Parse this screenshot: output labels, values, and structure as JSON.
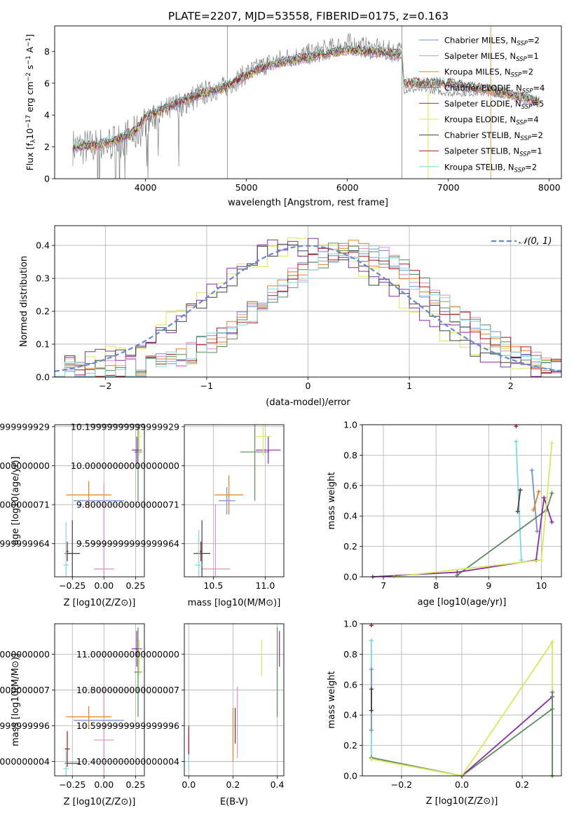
{
  "figure_title": "PLATE=2207, MJD=53558, FIBERID=0175, z=0.163",
  "series_colors": [
    "#6f8fd8",
    "#e08fbf",
    "#e8801e",
    "#5a8a5a",
    "#8a2aa8",
    "#d8e85a",
    "#404040",
    "#a01818",
    "#7adada"
  ],
  "chart_data": [
    {
      "type": "line",
      "title": "PLATE=2207, MJD=53558, FIBERID=0175, z=0.163",
      "xlabel": "wavelength [Angstrom, rest frame]",
      "ylabel": "Flux [f_λ 10^-17 erg cm^-2 s^-1 A^-1]",
      "xlim": [
        3100,
        8120
      ],
      "ylim": [
        0,
        9.6
      ],
      "xticks": [
        4000,
        5000,
        6000,
        7000,
        8000
      ],
      "yticks": [
        0,
        2,
        4,
        6,
        8
      ],
      "grid": false,
      "legend_position": "top-right",
      "legend": [
        {
          "base": "Chabrier MILES, N",
          "sub": "SSP",
          "tail": "=2"
        },
        {
          "base": "Salpeter MILES, N",
          "sub": "SSP",
          "tail": "=1"
        },
        {
          "base": "Kroupa MILES, N",
          "sub": "SSP",
          "tail": "=2"
        },
        {
          "base": "Chabrier ELODIE, N",
          "sub": "SSP",
          "tail": "=4"
        },
        {
          "base": "Salpeter ELODIE, N",
          "sub": "SSP",
          "tail": "=5"
        },
        {
          "base": "Kroupa ELODIE, N",
          "sub": "SSP",
          "tail": "=4"
        },
        {
          "base": "Chabrier STELIB, N",
          "sub": "SSP",
          "tail": "=2"
        },
        {
          "base": "Salpeter STELIB, N",
          "sub": "SSP",
          "tail": "=1"
        },
        {
          "base": "Kroupa STELIB, N",
          "sub": "SSP",
          "tail": "=2"
        }
      ],
      "observed_color": "#808080",
      "model_continuum": {
        "x": [
          3280,
          3500,
          3700,
          3900,
          4000,
          4200,
          4400,
          4600,
          4800,
          5000,
          5200,
          5400,
          5600,
          5800,
          6000,
          6200,
          6400,
          6500,
          6540,
          6560,
          6800,
          7000,
          7200,
          7400,
          7600,
          7800,
          7900
        ],
        "y": [
          2.0,
          2.1,
          2.4,
          3.0,
          3.9,
          4.4,
          5.0,
          5.4,
          5.8,
          6.5,
          7.1,
          7.4,
          7.6,
          7.9,
          8.1,
          8.0,
          7.9,
          7.8,
          7.8,
          6.0,
          6.0,
          6.0,
          5.8,
          5.6,
          5.3,
          5.0,
          4.8
        ]
      },
      "observed_continuum": {
        "x": [
          3280,
          3500,
          3700,
          3900,
          4000,
          4200,
          4400,
          4600,
          4800,
          5000,
          5200,
          5400,
          5600,
          5800,
          6000,
          6200,
          6400,
          6500,
          6540,
          6560,
          6800,
          7000,
          7200,
          7400,
          7600,
          7800,
          7900
        ],
        "y": [
          2.0,
          2.0,
          2.3,
          2.8,
          3.5,
          4.2,
          4.9,
          5.4,
          5.8,
          6.6,
          7.2,
          7.6,
          7.8,
          8.1,
          8.5,
          8.2,
          8.0,
          8.0,
          8.0,
          5.6,
          5.6,
          5.4,
          5.4,
          5.4,
          5.3,
          5.1,
          4.9
        ]
      }
    },
    {
      "type": "step",
      "xlabel": "(data-model)/error",
      "ylabel": "Normed distribution",
      "xlim": [
        -2.5,
        2.5
      ],
      "ylim": [
        0,
        0.46
      ],
      "xticks": [
        -2,
        -1,
        0,
        1,
        2
      ],
      "yticks": [
        0.0,
        0.1,
        0.2,
        0.3,
        0.4
      ],
      "grid": true,
      "legend_position": "top-right",
      "legend": [
        {
          "label": "𝒩(0, 1)",
          "color": "#6688d8"
        }
      ],
      "bin_edges_start": -2.5,
      "bin_width": 0.1,
      "groups": [
        {
          "center": -0.05,
          "width": 0.95,
          "peak": 0.39,
          "series": [
            5,
            4,
            6
          ]
        },
        {
          "center": 0.45,
          "width": 0.85,
          "peak": 0.37,
          "series": [
            0,
            1,
            2,
            3,
            7,
            8
          ]
        }
      ]
    },
    {
      "type": "errorbar",
      "xlabel": "Z [log10(Z/Z⊙)]",
      "ylabel": "age [log10(age/yr)]",
      "xlim": [
        -0.39,
        0.32
      ],
      "ylim": [
        9.43,
        10.21
      ],
      "xticks": [
        -0.25,
        0.0,
        0.25
      ],
      "yticks": [
        9.6,
        9.8,
        10.0,
        10.2
      ],
      "grid": true,
      "points": [
        {
          "x": -0.04,
          "y": 9.82,
          "ex": 0.2,
          "ey": 0.0,
          "color": 0
        },
        {
          "x": 0.0,
          "y": 9.47,
          "ex": 0.08,
          "ey": 0.44,
          "color": 1
        },
        {
          "x": -0.12,
          "y": 9.85,
          "ex": 0.18,
          "ey": 0.07,
          "color": 2
        },
        {
          "x": 0.27,
          "y": 10.07,
          "ex": 0.03,
          "ey": 0.25,
          "color": 3
        },
        {
          "x": 0.26,
          "y": 10.08,
          "ex": 0.04,
          "ey": 0.07,
          "color": 4
        },
        {
          "x": 0.28,
          "y": 10.15,
          "ex": 0.02,
          "ey": 0.1,
          "color": 5
        },
        {
          "x": -0.25,
          "y": 9.55,
          "ex": 0.06,
          "ey": 0.17,
          "color": 6
        },
        {
          "x": -0.29,
          "y": 9.56,
          "ex": 0.01,
          "ey": 0.05,
          "color": 7
        },
        {
          "x": -0.3,
          "y": 9.49,
          "ex": 0.02,
          "ey": 0.22,
          "color": 8
        }
      ]
    },
    {
      "type": "errorbar",
      "xlabel": "mass [log10(M/M⊙)]",
      "ylabel": "",
      "xlim": [
        10.22,
        11.18
      ],
      "ylim": [
        9.43,
        10.21
      ],
      "xticks": [
        10.5,
        11.0
      ],
      "yticks": [
        9.6,
        9.8,
        10.0,
        10.2
      ],
      "grid": true,
      "points": [
        {
          "x": 10.63,
          "y": 9.82,
          "ex": 0.08,
          "ey": 0.07,
          "color": 0
        },
        {
          "x": 10.52,
          "y": 9.47,
          "ex": 0.14,
          "ey": 0.33,
          "color": 1
        },
        {
          "x": 10.65,
          "y": 9.85,
          "ex": 0.14,
          "ey": 0.1,
          "color": 2
        },
        {
          "x": 10.9,
          "y": 10.07,
          "ex": 0.14,
          "ey": 0.25,
          "color": 3
        },
        {
          "x": 11.03,
          "y": 10.08,
          "ex": 0.12,
          "ey": 0.07,
          "color": 4
        },
        {
          "x": 10.98,
          "y": 10.15,
          "ex": 0.08,
          "ey": 0.1,
          "color": 5
        },
        {
          "x": 10.39,
          "y": 9.55,
          "ex": 0.08,
          "ey": 0.17,
          "color": 6
        },
        {
          "x": 10.38,
          "y": 9.56,
          "ex": 0.01,
          "ey": 0.05,
          "color": 7
        },
        {
          "x": 10.36,
          "y": 9.49,
          "ex": 0.04,
          "ey": 0.18,
          "color": 8
        }
      ]
    },
    {
      "type": "line",
      "xlabel": "age [log10(age/yr)]",
      "ylabel": "mass weight",
      "xlim": [
        6.6,
        10.38
      ],
      "ylim": [
        0,
        1.0
      ],
      "xticks": [
        7,
        8,
        9,
        10
      ],
      "yticks": [
        0.0,
        0.2,
        0.4,
        0.6,
        0.8,
        1.0
      ],
      "grid": true,
      "lines": [
        {
          "color": 8,
          "x": [
            9.52,
            9.62
          ],
          "y": [
            0.89,
            0.11
          ]
        },
        {
          "color": 0,
          "x": [
            9.82,
            9.92
          ],
          "y": [
            0.7,
            0.3
          ]
        },
        {
          "color": 2,
          "x": [
            9.85,
            9.95
          ],
          "y": [
            0.44,
            0.56
          ]
        },
        {
          "color": 6,
          "x": [
            9.55,
            9.6
          ],
          "y": [
            0.43,
            0.57
          ]
        },
        {
          "color": 3,
          "x": [
            8.4,
            10.1,
            10.2
          ],
          "y": [
            0.01,
            0.44,
            0.55
          ]
        },
        {
          "color": 4,
          "x": [
            6.8,
            8.4,
            9.9,
            10.05,
            10.2
          ],
          "y": [
            0.0,
            0.03,
            0.11,
            0.52,
            0.36
          ]
        },
        {
          "color": 5,
          "x": [
            7.2,
            10.0,
            10.2
          ],
          "y": [
            0.0,
            0.11,
            0.88
          ]
        },
        {
          "color": 7,
          "x": [
            9.52
          ],
          "y": [
            0.99
          ]
        }
      ]
    },
    {
      "type": "errorbar",
      "xlabel": "Z [log10(Z/Z⊙)]",
      "ylabel": "mass [log10(M/M⊙)]",
      "xlim": [
        -0.39,
        0.32
      ],
      "ylim": [
        10.32,
        11.17
      ],
      "xticks": [
        -0.25,
        0.0,
        0.25
      ],
      "yticks": [
        10.4,
        10.6,
        10.8,
        11.0
      ],
      "grid": true,
      "points": [
        {
          "x": -0.04,
          "y": 10.63,
          "ex": 0.2,
          "ey": 0.0,
          "color": 0
        },
        {
          "x": 0.0,
          "y": 10.52,
          "ex": 0.08,
          "ey": 0.3,
          "color": 1
        },
        {
          "x": -0.12,
          "y": 10.65,
          "ex": 0.18,
          "ey": 0.06,
          "color": 2
        },
        {
          "x": 0.27,
          "y": 10.9,
          "ex": 0.03,
          "ey": 0.25,
          "color": 3
        },
        {
          "x": 0.26,
          "y": 11.03,
          "ex": 0.04,
          "ey": 0.1,
          "color": 4
        },
        {
          "x": 0.28,
          "y": 10.98,
          "ex": 0.02,
          "ey": 0.1,
          "color": 5
        },
        {
          "x": -0.25,
          "y": 10.39,
          "ex": 0.06,
          "ey": 0.0,
          "color": 6
        },
        {
          "x": -0.29,
          "y": 10.47,
          "ex": 0.02,
          "ey": 0.1,
          "color": 7
        },
        {
          "x": -0.3,
          "y": 10.36,
          "ex": 0.02,
          "ey": 0.1,
          "color": 8
        }
      ]
    },
    {
      "type": "errorbar",
      "xlabel": "E(B-V)",
      "ylabel": "",
      "xlim": [
        -0.02,
        0.43
      ],
      "ylim": [
        10.32,
        11.17
      ],
      "xticks": [
        0.0,
        0.2,
        0.4
      ],
      "yticks": [
        10.4,
        10.6,
        10.8,
        11.0
      ],
      "grid": true,
      "points": [
        {
          "x": 0.0,
          "y": 10.45,
          "ex": 0,
          "ey": 0.1,
          "color": 8
        },
        {
          "x": 0.0,
          "y": 10.52,
          "ex": 0,
          "ey": 0.08,
          "color": 7
        },
        {
          "x": 0.2,
          "y": 10.55,
          "ex": 0,
          "ey": 0.15,
          "color": 2
        },
        {
          "x": 0.21,
          "y": 10.6,
          "ex": 0,
          "ey": 0.1,
          "color": 6
        },
        {
          "x": 0.22,
          "y": 10.62,
          "ex": 0,
          "ey": 0.2,
          "color": 1
        },
        {
          "x": 0.33,
          "y": 10.98,
          "ex": 0,
          "ey": 0.1,
          "color": 5
        },
        {
          "x": 0.4,
          "y": 10.9,
          "ex": 0,
          "ey": 0.25,
          "color": 3
        },
        {
          "x": 0.41,
          "y": 11.03,
          "ex": 0,
          "ey": 0.1,
          "color": 4
        }
      ]
    },
    {
      "type": "line",
      "xlabel": "Z [log10(Z/Z⊙)]",
      "ylabel": "mass weight",
      "xlim": [
        -0.33,
        0.33
      ],
      "ylim": [
        0,
        1.0
      ],
      "xticks": [
        -0.2,
        0.0,
        0.2
      ],
      "yticks": [
        0.0,
        0.2,
        0.4,
        0.6,
        0.8,
        1.0
      ],
      "grid": true,
      "lines": [
        {
          "color": 8,
          "x": [
            -0.3,
            -0.3
          ],
          "y": [
            0.89,
            0.11
          ]
        },
        {
          "color": 0,
          "x": [
            -0.3,
            -0.3
          ],
          "y": [
            0.7,
            0.3
          ]
        },
        {
          "color": 6,
          "x": [
            -0.3,
            -0.3
          ],
          "y": [
            0.57,
            0.43
          ]
        },
        {
          "color": 3,
          "x": [
            -0.3,
            0.0,
            0.3
          ],
          "y": [
            0.12,
            0.0,
            0.44
          ]
        },
        {
          "color": 4,
          "x": [
            0.0,
            0.3
          ],
          "y": [
            0.0,
            0.52
          ]
        },
        {
          "color": 5,
          "x": [
            -0.3,
            0.0,
            0.3,
            0.3
          ],
          "y": [
            0.11,
            0.0,
            0.88,
            0.0
          ]
        },
        {
          "color": 3,
          "x": [
            0.3,
            0.3
          ],
          "y": [
            0.55,
            0.0
          ]
        },
        {
          "color": 7,
          "x": [
            -0.3
          ],
          "y": [
            0.99
          ]
        }
      ]
    }
  ]
}
